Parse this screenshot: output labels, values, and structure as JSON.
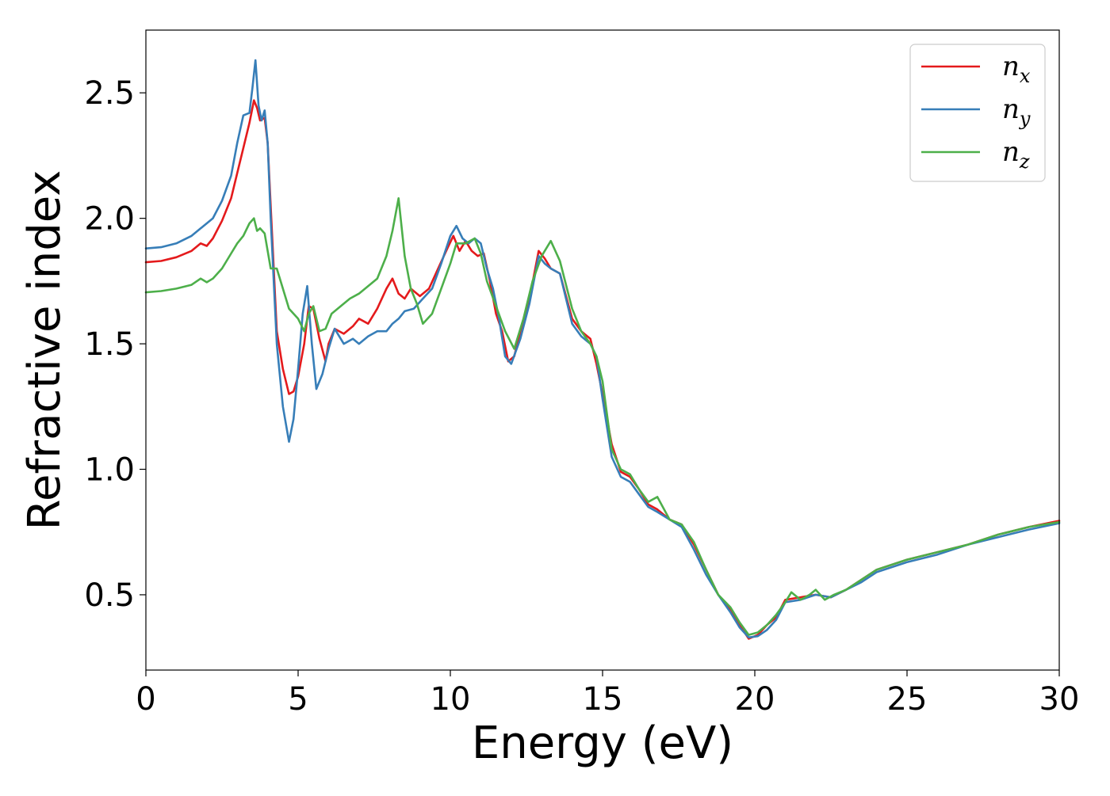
{
  "chart_data": {
    "type": "line",
    "title": "",
    "xlabel": "Energy (eV)",
    "ylabel": "Refractive index",
    "xlim": [
      0,
      30
    ],
    "ylim": [
      0.2,
      2.75
    ],
    "xticks": [
      0,
      5,
      10,
      15,
      20,
      25,
      30
    ],
    "xtick_labels": [
      "0",
      "5",
      "10",
      "15",
      "20",
      "25",
      "30"
    ],
    "yticks": [
      0.5,
      1.0,
      1.5,
      2.0,
      2.5
    ],
    "ytick_labels": [
      "0.5",
      "1.0",
      "1.5",
      "2.0",
      "2.5"
    ],
    "grid": false,
    "legend_position": "top-right",
    "series": [
      {
        "name": "n",
        "subscript": "x",
        "color": "#e41a1c",
        "x": [
          0,
          0.5,
          1,
          1.5,
          1.8,
          2.0,
          2.2,
          2.5,
          2.8,
          3.0,
          3.2,
          3.4,
          3.55,
          3.65,
          3.75,
          3.9,
          4.0,
          4.1,
          4.3,
          4.5,
          4.7,
          4.85,
          5.0,
          5.2,
          5.35,
          5.5,
          5.7,
          5.9,
          6.0,
          6.2,
          6.5,
          6.8,
          7.0,
          7.3,
          7.6,
          7.9,
          8.1,
          8.3,
          8.5,
          8.7,
          9.0,
          9.3,
          9.6,
          9.9,
          10.1,
          10.3,
          10.5,
          10.7,
          10.9,
          11.1,
          11.3,
          11.5,
          11.7,
          11.9,
          12.1,
          12.3,
          12.6,
          12.9,
          13.1,
          13.3,
          13.6,
          14.0,
          14.3,
          14.6,
          14.8,
          15.0,
          15.3,
          15.6,
          15.9,
          16.2,
          16.5,
          16.8,
          17.2,
          17.6,
          18.0,
          18.4,
          18.8,
          19.2,
          19.5,
          19.8,
          20.1,
          20.4,
          20.7,
          21.0,
          21.5,
          22.0,
          22.5,
          23.0,
          23.5,
          24.0,
          25.0,
          26.0,
          27.0,
          28.0,
          29.0,
          30.0
        ],
        "y": [
          1.825,
          1.83,
          1.845,
          1.87,
          1.9,
          1.89,
          1.92,
          1.99,
          2.08,
          2.18,
          2.28,
          2.38,
          2.47,
          2.44,
          2.39,
          2.4,
          2.3,
          2.05,
          1.55,
          1.4,
          1.3,
          1.31,
          1.37,
          1.5,
          1.65,
          1.64,
          1.52,
          1.43,
          1.5,
          1.56,
          1.54,
          1.57,
          1.6,
          1.58,
          1.64,
          1.72,
          1.76,
          1.7,
          1.68,
          1.72,
          1.69,
          1.72,
          1.8,
          1.88,
          1.93,
          1.87,
          1.91,
          1.87,
          1.85,
          1.86,
          1.75,
          1.62,
          1.55,
          1.43,
          1.45,
          1.55,
          1.68,
          1.87,
          1.84,
          1.8,
          1.78,
          1.6,
          1.55,
          1.52,
          1.42,
          1.3,
          1.1,
          0.99,
          0.97,
          0.92,
          0.86,
          0.84,
          0.8,
          0.78,
          0.7,
          0.6,
          0.5,
          0.44,
          0.38,
          0.325,
          0.34,
          0.38,
          0.41,
          0.48,
          0.49,
          0.5,
          0.49,
          0.52,
          0.56,
          0.6,
          0.64,
          0.67,
          0.7,
          0.74,
          0.77,
          0.795
        ]
      },
      {
        "name": "n",
        "subscript": "y",
        "color": "#377eb8",
        "x": [
          0,
          0.5,
          1,
          1.5,
          1.8,
          2.0,
          2.2,
          2.5,
          2.8,
          3.0,
          3.2,
          3.4,
          3.5,
          3.6,
          3.7,
          3.8,
          3.9,
          4.0,
          4.1,
          4.3,
          4.5,
          4.7,
          4.85,
          5.0,
          5.15,
          5.3,
          5.45,
          5.6,
          5.8,
          6.0,
          6.2,
          6.5,
          6.8,
          7.0,
          7.3,
          7.6,
          7.9,
          8.1,
          8.3,
          8.5,
          8.8,
          9.1,
          9.4,
          9.7,
          10.0,
          10.2,
          10.4,
          10.6,
          10.8,
          11.0,
          11.2,
          11.4,
          11.6,
          11.8,
          12.0,
          12.3,
          12.6,
          12.9,
          13.1,
          13.3,
          13.6,
          14.0,
          14.3,
          14.6,
          14.8,
          15.0,
          15.3,
          15.6,
          15.9,
          16.2,
          16.5,
          16.8,
          17.2,
          17.6,
          18.0,
          18.4,
          18.8,
          19.2,
          19.5,
          19.8,
          20.1,
          20.4,
          20.7,
          21.0,
          21.5,
          22.0,
          22.5,
          23.0,
          23.5,
          24.0,
          25.0,
          26.0,
          27.0,
          28.0,
          29.0,
          30.0
        ],
        "y": [
          1.88,
          1.885,
          1.9,
          1.93,
          1.96,
          1.98,
          2.0,
          2.07,
          2.17,
          2.3,
          2.41,
          2.42,
          2.52,
          2.63,
          2.45,
          2.39,
          2.43,
          2.3,
          2.0,
          1.5,
          1.25,
          1.11,
          1.2,
          1.4,
          1.62,
          1.73,
          1.5,
          1.32,
          1.38,
          1.48,
          1.56,
          1.5,
          1.52,
          1.5,
          1.53,
          1.55,
          1.55,
          1.58,
          1.6,
          1.63,
          1.64,
          1.68,
          1.72,
          1.82,
          1.93,
          1.97,
          1.92,
          1.9,
          1.92,
          1.9,
          1.8,
          1.72,
          1.6,
          1.45,
          1.42,
          1.52,
          1.66,
          1.85,
          1.82,
          1.8,
          1.78,
          1.58,
          1.53,
          1.5,
          1.45,
          1.28,
          1.05,
          0.97,
          0.95,
          0.9,
          0.85,
          0.83,
          0.8,
          0.77,
          0.68,
          0.58,
          0.5,
          0.43,
          0.37,
          0.33,
          0.335,
          0.36,
          0.4,
          0.47,
          0.48,
          0.5,
          0.49,
          0.52,
          0.55,
          0.59,
          0.63,
          0.66,
          0.7,
          0.73,
          0.76,
          0.785
        ]
      },
      {
        "name": "n",
        "subscript": "z",
        "color": "#4daf4a",
        "x": [
          0,
          0.5,
          1,
          1.5,
          1.8,
          2.0,
          2.2,
          2.5,
          2.8,
          3.0,
          3.2,
          3.4,
          3.55,
          3.65,
          3.75,
          3.9,
          4.0,
          4.1,
          4.3,
          4.5,
          4.7,
          5.0,
          5.2,
          5.35,
          5.5,
          5.7,
          5.9,
          6.1,
          6.4,
          6.7,
          7.0,
          7.3,
          7.6,
          7.9,
          8.1,
          8.3,
          8.5,
          8.7,
          8.9,
          9.1,
          9.4,
          9.7,
          10.0,
          10.2,
          10.5,
          10.8,
          11.0,
          11.2,
          11.5,
          11.8,
          12.1,
          12.4,
          12.7,
          13.0,
          13.3,
          13.6,
          14.0,
          14.3,
          14.6,
          14.8,
          15.0,
          15.3,
          15.6,
          15.9,
          16.2,
          16.5,
          16.8,
          17.2,
          17.6,
          18.0,
          18.4,
          18.8,
          19.2,
          19.5,
          19.8,
          20.1,
          20.4,
          20.7,
          21.0,
          21.2,
          21.5,
          21.8,
          22.0,
          22.3,
          22.6,
          23.0,
          23.5,
          24.0,
          25.0,
          26.0,
          27.0,
          28.0,
          29.0,
          30.0
        ],
        "y": [
          1.705,
          1.71,
          1.72,
          1.735,
          1.76,
          1.745,
          1.76,
          1.8,
          1.86,
          1.9,
          1.93,
          1.98,
          2.0,
          1.95,
          1.96,
          1.94,
          1.87,
          1.8,
          1.8,
          1.72,
          1.64,
          1.6,
          1.55,
          1.62,
          1.65,
          1.55,
          1.56,
          1.62,
          1.65,
          1.68,
          1.7,
          1.73,
          1.76,
          1.85,
          1.95,
          2.08,
          1.85,
          1.72,
          1.66,
          1.58,
          1.62,
          1.72,
          1.82,
          1.9,
          1.9,
          1.92,
          1.86,
          1.75,
          1.65,
          1.55,
          1.48,
          1.6,
          1.75,
          1.85,
          1.91,
          1.83,
          1.64,
          1.55,
          1.5,
          1.45,
          1.35,
          1.08,
          1.0,
          0.98,
          0.92,
          0.87,
          0.89,
          0.8,
          0.78,
          0.71,
          0.6,
          0.5,
          0.45,
          0.39,
          0.34,
          0.35,
          0.38,
          0.42,
          0.47,
          0.51,
          0.48,
          0.5,
          0.52,
          0.48,
          0.5,
          0.52,
          0.56,
          0.6,
          0.64,
          0.67,
          0.7,
          0.74,
          0.77,
          0.79
        ]
      }
    ]
  }
}
